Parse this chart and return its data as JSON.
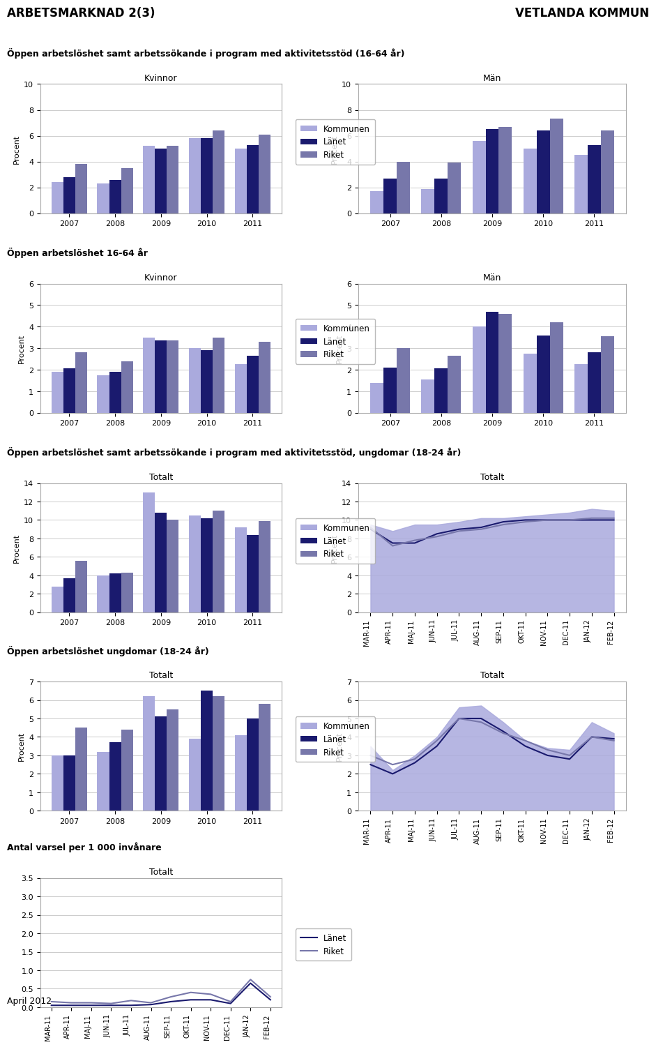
{
  "title_left": "ARBETSMARKNAD 2(3)",
  "title_right": "VETLANDA KOMMUN",
  "footer": "April 2012",
  "section1_title": "Öppen arbetslöshet samt arbetssökande i program med aktivitetsstöd (16-64 år)",
  "section1_left_subtitle": "Kvinnor",
  "section1_right_subtitle": "Män",
  "section1_ylim": [
    0,
    10
  ],
  "section1_yticks": [
    0,
    2,
    4,
    6,
    8,
    10
  ],
  "section1_years": [
    "2007",
    "2008",
    "2009",
    "2010",
    "2011"
  ],
  "section1_left": {
    "kommunen": [
      2.4,
      2.3,
      5.2,
      5.8,
      5.0
    ],
    "lanet": [
      2.8,
      2.6,
      5.0,
      5.8,
      5.3
    ],
    "riket": [
      3.8,
      3.5,
      5.2,
      6.4,
      6.1
    ]
  },
  "section1_right": {
    "kommunen": [
      1.7,
      1.9,
      5.6,
      5.0,
      4.5
    ],
    "lanet": [
      2.7,
      2.7,
      6.5,
      6.4,
      5.3
    ],
    "riket": [
      4.0,
      3.9,
      6.7,
      7.3,
      6.4
    ]
  },
  "section2_title": "Öppen arbetslöshet 16-64 år",
  "section2_left_subtitle": "Kvinnor",
  "section2_right_subtitle": "Män",
  "section2_ylim": [
    0,
    6
  ],
  "section2_yticks": [
    0,
    1,
    2,
    3,
    4,
    5,
    6
  ],
  "section2_years": [
    "2007",
    "2008",
    "2009",
    "2010",
    "2011"
  ],
  "section2_left": {
    "kommunen": [
      1.9,
      1.75,
      3.5,
      3.0,
      2.25
    ],
    "lanet": [
      2.05,
      1.9,
      3.35,
      2.9,
      2.65
    ],
    "riket": [
      2.8,
      2.4,
      3.35,
      3.5,
      3.3
    ]
  },
  "section2_right": {
    "kommunen": [
      1.4,
      1.55,
      4.0,
      2.75,
      2.25
    ],
    "lanet": [
      2.1,
      2.05,
      4.7,
      3.6,
      2.8
    ],
    "riket": [
      3.0,
      2.65,
      4.6,
      4.2,
      3.55
    ]
  },
  "section3_title": "Öppen arbetslöshet samt arbetssökande i program med aktivitetsstöd, ungdomar (18-24 år)",
  "section3_left_subtitle": "Totalt",
  "section3_right_subtitle": "Totalt",
  "section3_ylim": [
    0,
    14
  ],
  "section3_yticks": [
    0,
    2,
    4,
    6,
    8,
    10,
    12,
    14
  ],
  "section3_years": [
    "2007",
    "2008",
    "2009",
    "2010",
    "2011"
  ],
  "section3_left": {
    "kommunen": [
      2.8,
      4.0,
      13.0,
      10.5,
      9.2
    ],
    "lanet": [
      3.7,
      4.2,
      10.8,
      10.2,
      8.4
    ],
    "riket": [
      5.6,
      4.3,
      10.0,
      11.0,
      9.9
    ]
  },
  "section3_right_x": [
    "MAR-11",
    "APR-11",
    "MAJ-11",
    "JUN-11",
    "JUL-11",
    "AUG-11",
    "SEP-11",
    "OKT-11",
    "NOV-11",
    "DEC-11",
    "JAN-12",
    "FEB-12"
  ],
  "section3_right": {
    "kommunen": [
      9.5,
      8.8,
      9.5,
      9.5,
      9.8,
      10.2,
      10.2,
      10.4,
      10.6,
      10.8,
      11.2,
      11.0
    ],
    "lanet": [
      9.0,
      7.5,
      7.5,
      8.5,
      9.0,
      9.2,
      9.8,
      10.0,
      10.0,
      10.0,
      10.0,
      10.0
    ],
    "riket": [
      9.2,
      7.2,
      7.8,
      8.2,
      8.8,
      9.0,
      9.5,
      9.8,
      10.0,
      10.0,
      10.2,
      10.2
    ]
  },
  "section4_title": "Öppen arbetslöshet ungdomar (18-24 år)",
  "section4_left_subtitle": "Totalt",
  "section4_right_subtitle": "Totalt",
  "section4_ylim": [
    0,
    7
  ],
  "section4_yticks": [
    0,
    1,
    2,
    3,
    4,
    5,
    6,
    7
  ],
  "section4_years": [
    "2007",
    "2008",
    "2009",
    "2010",
    "2011"
  ],
  "section4_left": {
    "kommunen": [
      3.0,
      3.2,
      6.2,
      3.9,
      4.1
    ],
    "lanet": [
      3.0,
      3.7,
      5.1,
      6.5,
      5.0
    ],
    "riket": [
      4.5,
      4.4,
      5.5,
      6.2,
      5.8
    ]
  },
  "section4_right_x": [
    "MAR-11",
    "APR-11",
    "MAJ-11",
    "JUN-11",
    "JUL-11",
    "AUG-11",
    "SEP-11",
    "OKT-11",
    "NOV-11",
    "DEC-11",
    "JAN-12",
    "FEB-12"
  ],
  "section4_right": {
    "kommunen": [
      3.5,
      2.2,
      3.0,
      4.0,
      5.6,
      5.7,
      4.8,
      3.8,
      3.4,
      3.3,
      4.8,
      4.2
    ],
    "lanet": [
      2.5,
      2.0,
      2.6,
      3.5,
      5.0,
      5.0,
      4.3,
      3.5,
      3.0,
      2.8,
      4.0,
      3.9
    ],
    "riket": [
      3.0,
      2.5,
      2.8,
      3.8,
      5.0,
      4.8,
      4.2,
      3.8,
      3.3,
      3.0,
      4.0,
      3.8
    ]
  },
  "section5_title": "Antal varsel per 1 000 invånare",
  "section5_subtitle": "Totalt",
  "section5_ylim": [
    0,
    3.5
  ],
  "section5_yticks": [
    0.0,
    0.5,
    1.0,
    1.5,
    2.0,
    2.5,
    3.0,
    3.5
  ],
  "section5_x": [
    "MAR-11",
    "APR-11",
    "MAJ-11",
    "JUN-11",
    "JUL-11",
    "AUG-11",
    "SEP-11",
    "OKT-11",
    "NOV-11",
    "DEC-11",
    "JAN-12",
    "FEB-12"
  ],
  "section5": {
    "lanet": [
      0.05,
      0.05,
      0.05,
      0.05,
      0.05,
      0.07,
      0.15,
      0.2,
      0.2,
      0.1,
      0.65,
      0.2
    ],
    "riket": [
      0.15,
      0.12,
      0.12,
      0.1,
      0.18,
      0.12,
      0.28,
      0.4,
      0.35,
      0.15,
      0.75,
      0.28
    ]
  },
  "color_kommunen": "#aaaadd",
  "color_lanet": "#1a1a6e",
  "color_riket": "#7777aa",
  "bg_color": "#ffffff",
  "plot_bg": "#ffffff"
}
